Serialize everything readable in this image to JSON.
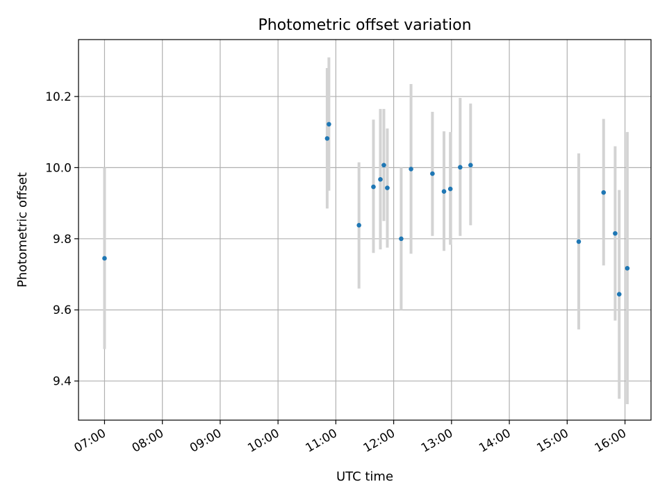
{
  "chart_data": {
    "type": "scatter",
    "title": "Photometric offset variation",
    "xlabel": "UTC time",
    "ylabel": "Photometric offset",
    "x_unit": "hours UTC",
    "xlim": [
      6.55,
      16.45
    ],
    "ylim": [
      9.29,
      10.36
    ],
    "x_ticks": [
      {
        "value": 7,
        "label": "07:00"
      },
      {
        "value": 8,
        "label": "08:00"
      },
      {
        "value": 9,
        "label": "09:00"
      },
      {
        "value": 10,
        "label": "10:00"
      },
      {
        "value": 11,
        "label": "11:00"
      },
      {
        "value": 12,
        "label": "12:00"
      },
      {
        "value": 13,
        "label": "13:00"
      },
      {
        "value": 14,
        "label": "14:00"
      },
      {
        "value": 15,
        "label": "15:00"
      },
      {
        "value": 16,
        "label": "16:00"
      }
    ],
    "y_ticks": [
      {
        "value": 9.4,
        "label": "9.4"
      },
      {
        "value": 9.6,
        "label": "9.6"
      },
      {
        "value": 9.8,
        "label": "9.8"
      },
      {
        "value": 10.0,
        "label": "10.0"
      },
      {
        "value": 10.2,
        "label": "10.2"
      }
    ],
    "grid": true,
    "colors": {
      "points": "#1f77b4",
      "error_bars": "#d3d3d3",
      "grid": "#b0b0b0"
    },
    "points": [
      {
        "x": 7.0,
        "y": 9.745,
        "ylow": 9.49,
        "yhigh": 10.0
      },
      {
        "x": 10.85,
        "y": 10.082,
        "ylow": 9.885,
        "yhigh": 10.28
      },
      {
        "x": 10.88,
        "y": 10.122,
        "ylow": 9.935,
        "yhigh": 10.31
      },
      {
        "x": 11.4,
        "y": 9.838,
        "ylow": 9.66,
        "yhigh": 10.015
      },
      {
        "x": 11.65,
        "y": 9.946,
        "ylow": 9.76,
        "yhigh": 10.135
      },
      {
        "x": 11.77,
        "y": 9.967,
        "ylow": 9.77,
        "yhigh": 10.165
      },
      {
        "x": 11.83,
        "y": 10.007,
        "ylow": 9.85,
        "yhigh": 10.165
      },
      {
        "x": 11.89,
        "y": 9.943,
        "ylow": 9.775,
        "yhigh": 10.11
      },
      {
        "x": 12.13,
        "y": 9.8,
        "ylow": 9.6,
        "yhigh": 10.0
      },
      {
        "x": 12.3,
        "y": 9.996,
        "ylow": 9.758,
        "yhigh": 10.235
      },
      {
        "x": 12.67,
        "y": 9.983,
        "ylow": 9.808,
        "yhigh": 10.157
      },
      {
        "x": 12.87,
        "y": 9.933,
        "ylow": 9.766,
        "yhigh": 10.102
      },
      {
        "x": 12.98,
        "y": 9.94,
        "ylow": 9.783,
        "yhigh": 10.1
      },
      {
        "x": 13.15,
        "y": 10.001,
        "ylow": 9.808,
        "yhigh": 10.196
      },
      {
        "x": 13.33,
        "y": 10.007,
        "ylow": 9.838,
        "yhigh": 10.18
      },
      {
        "x": 15.2,
        "y": 9.792,
        "ylow": 9.545,
        "yhigh": 10.04
      },
      {
        "x": 15.63,
        "y": 9.93,
        "ylow": 9.725,
        "yhigh": 10.137
      },
      {
        "x": 15.83,
        "y": 9.815,
        "ylow": 9.57,
        "yhigh": 10.06
      },
      {
        "x": 15.9,
        "y": 9.644,
        "ylow": 9.35,
        "yhigh": 9.937
      },
      {
        "x": 16.04,
        "y": 9.717,
        "ylow": 9.335,
        "yhigh": 10.1
      }
    ]
  }
}
